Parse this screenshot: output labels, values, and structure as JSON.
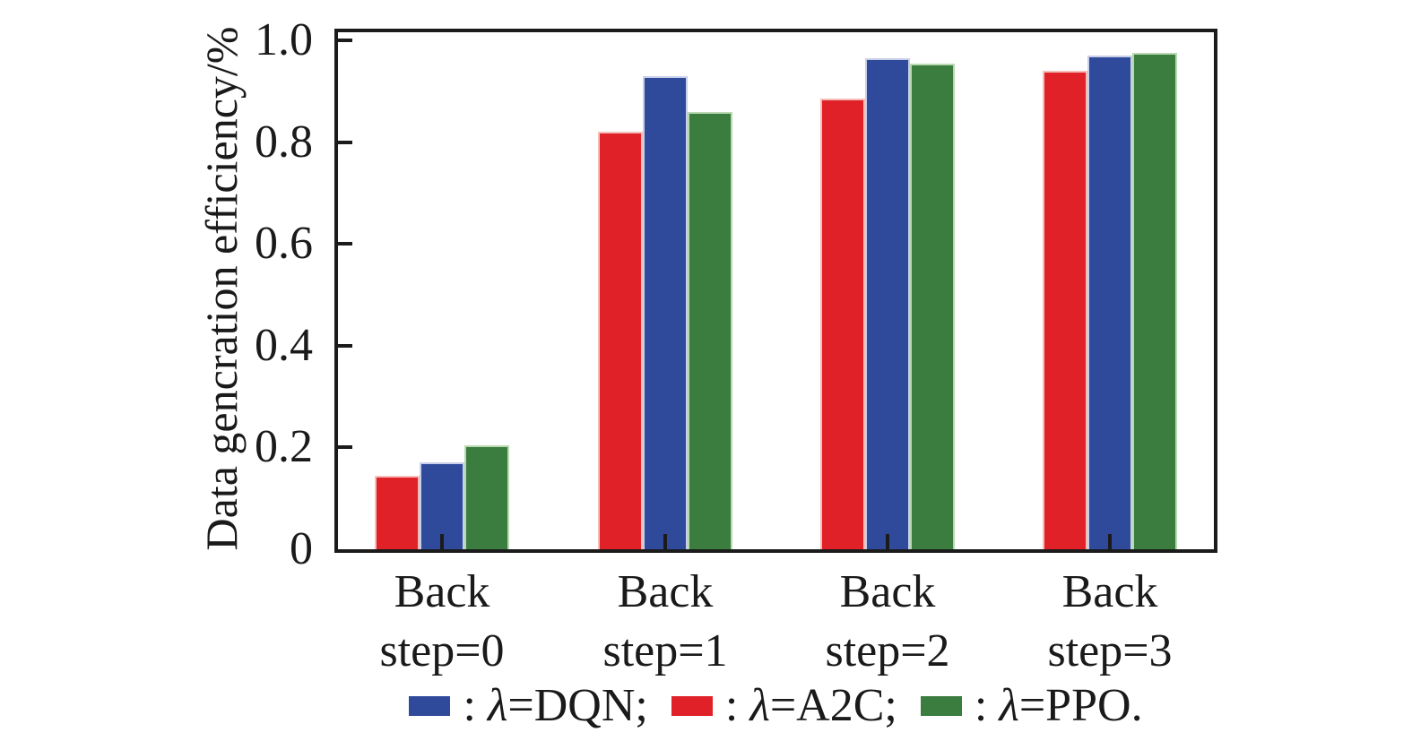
{
  "figure": {
    "background": "#ffffff",
    "axis_color": "#1b1b1b",
    "text_color": "#1a1a1a"
  },
  "chart_data": {
    "type": "bar",
    "title": "",
    "xlabel": "",
    "ylabel": "Data gencration efficiency/%",
    "categories": [
      "Back step=0",
      "Back step=1",
      "Back step=2",
      "Back step=3"
    ],
    "category_lines": [
      [
        "Back",
        "step=0"
      ],
      [
        "Back",
        "step=1"
      ],
      [
        "Back",
        "step=2"
      ],
      [
        "Back",
        "step=3"
      ]
    ],
    "series": [
      {
        "name": "λ=A2C",
        "key": "a2c",
        "color": "#e02127",
        "edge_color": "#f5beb9",
        "values": [
          0.145,
          0.82,
          0.885,
          0.94
        ]
      },
      {
        "name": "λ=DQN",
        "key": "dqn",
        "color": "#2f4a9b",
        "edge_color": "#c8cfe9",
        "values": [
          0.17,
          0.93,
          0.965,
          0.97
        ]
      },
      {
        "name": "λ=PPO",
        "key": "ppo",
        "color": "#3a7d3e",
        "edge_color": "#bad8b1",
        "values": [
          0.205,
          0.86,
          0.955,
          0.975
        ]
      }
    ],
    "yticks": [
      0,
      0.2,
      0.4,
      0.6,
      0.8,
      1.0
    ],
    "ytick_labels": [
      "0",
      "0.2",
      "0.4",
      "0.6",
      "0.8",
      "1.0"
    ],
    "ylim": [
      0,
      1.02
    ],
    "grid": false,
    "legend_position": "bottom",
    "legend": [
      {
        "pre": ": ",
        "sym": "λ",
        "post": "=DQN;",
        "color": "#2f4a9b",
        "series": "dqn"
      },
      {
        "pre": ": ",
        "sym": "λ",
        "post": "=A2C;",
        "color": "#e02127",
        "series": "a2c"
      },
      {
        "pre": ": ",
        "sym": "λ",
        "post": "=PPO.",
        "color": "#3a7d3e",
        "series": "ppo"
      }
    ]
  }
}
